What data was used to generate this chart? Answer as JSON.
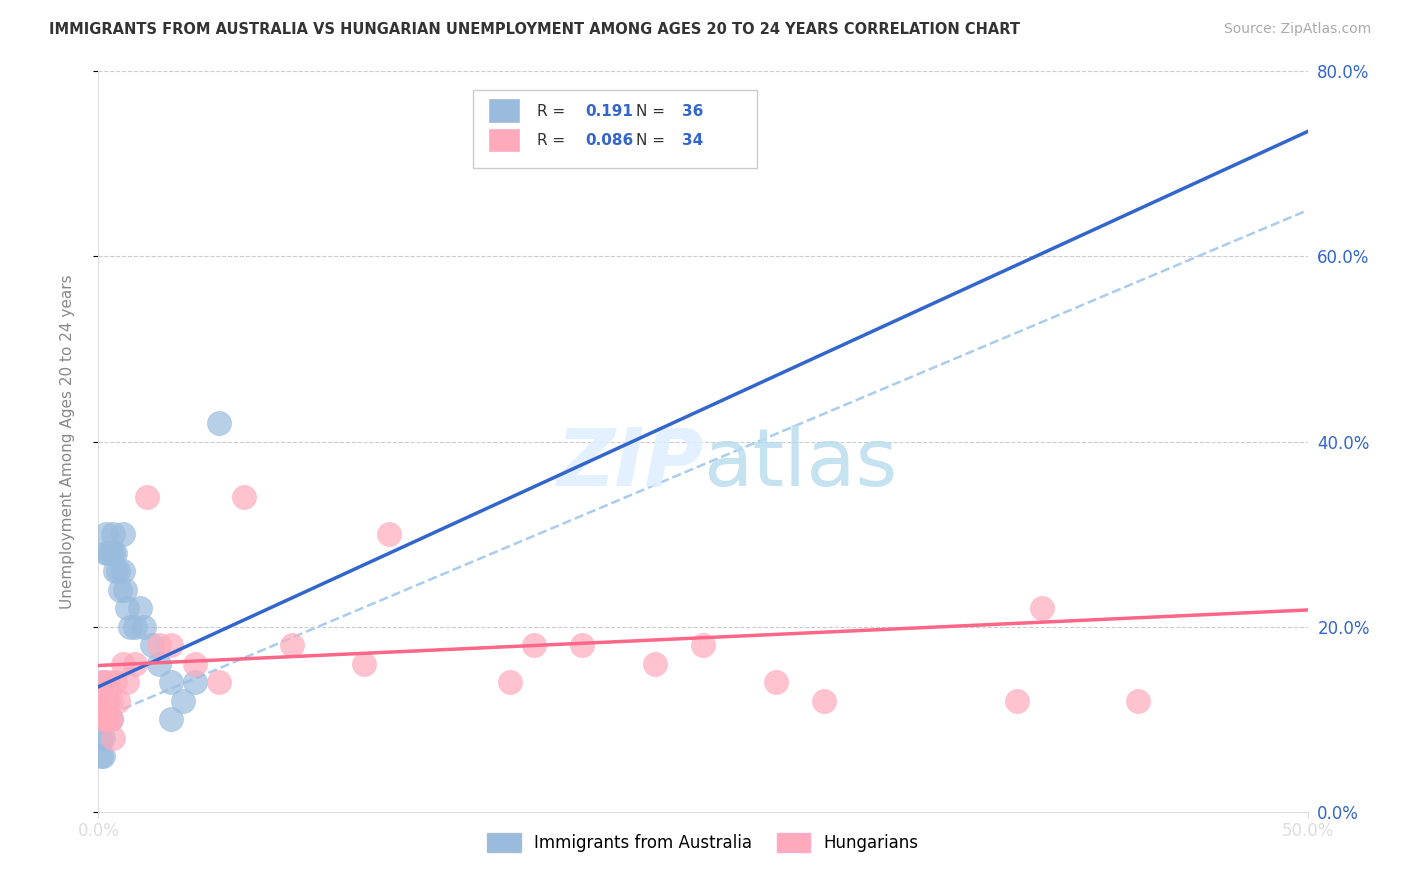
{
  "title": "IMMIGRANTS FROM AUSTRALIA VS HUNGARIAN UNEMPLOYMENT AMONG AGES 20 TO 24 YEARS CORRELATION CHART",
  "source": "Source: ZipAtlas.com",
  "ylabel": "Unemployment Among Ages 20 to 24 years",
  "xlim": [
    0,
    0.5
  ],
  "ylim": [
    0,
    0.8
  ],
  "legend1_R": "0.191",
  "legend1_N": "36",
  "legend2_R": "0.086",
  "legend2_N": "34",
  "legend1_label": "Immigrants from Australia",
  "legend2_label": "Hungarians",
  "blue_scatter_color": "#99BBDD",
  "pink_scatter_color": "#FFAABB",
  "blue_line_color": "#3366CC",
  "pink_line_color": "#FF6688",
  "dashed_line_color": "#AACCEE",
  "watermark_color": "#DDEEFF",
  "blue_x": [
    0.001,
    0.001,
    0.001,
    0.002,
    0.002,
    0.002,
    0.003,
    0.003,
    0.003,
    0.004,
    0.004,
    0.005,
    0.005,
    0.006,
    0.006,
    0.007,
    0.007,
    0.008,
    0.009,
    0.01,
    0.01,
    0.011,
    0.012,
    0.013,
    0.015,
    0.017,
    0.019,
    0.022,
    0.025,
    0.03,
    0.03,
    0.035,
    0.04,
    0.05,
    0.001,
    0.002
  ],
  "blue_y": [
    0.12,
    0.1,
    0.08,
    0.14,
    0.1,
    0.08,
    0.3,
    0.28,
    0.1,
    0.28,
    0.12,
    0.28,
    0.1,
    0.3,
    0.28,
    0.28,
    0.26,
    0.26,
    0.24,
    0.26,
    0.3,
    0.24,
    0.22,
    0.2,
    0.2,
    0.22,
    0.2,
    0.18,
    0.16,
    0.14,
    0.1,
    0.12,
    0.14,
    0.42,
    0.06,
    0.06
  ],
  "pink_x": [
    0.001,
    0.001,
    0.002,
    0.003,
    0.003,
    0.004,
    0.004,
    0.005,
    0.005,
    0.006,
    0.007,
    0.008,
    0.01,
    0.012,
    0.015,
    0.02,
    0.025,
    0.03,
    0.04,
    0.05,
    0.06,
    0.08,
    0.11,
    0.12,
    0.17,
    0.18,
    0.2,
    0.23,
    0.25,
    0.28,
    0.3,
    0.38,
    0.39,
    0.43
  ],
  "pink_y": [
    0.12,
    0.1,
    0.14,
    0.12,
    0.1,
    0.14,
    0.1,
    0.12,
    0.1,
    0.08,
    0.14,
    0.12,
    0.16,
    0.14,
    0.16,
    0.34,
    0.18,
    0.18,
    0.16,
    0.14,
    0.34,
    0.18,
    0.16,
    0.3,
    0.14,
    0.18,
    0.18,
    0.16,
    0.18,
    0.14,
    0.12,
    0.12,
    0.22,
    0.12
  ],
  "blue_line_x0": 0.0,
  "blue_line_y0": 0.135,
  "blue_line_x1": 0.1,
  "blue_line_y1": 0.255,
  "pink_line_x0": 0.0,
  "pink_line_y0": 0.158,
  "pink_line_x1": 0.5,
  "pink_line_y1": 0.218,
  "dash_line_x0": 0.0,
  "dash_line_y0": 0.1,
  "dash_line_x1": 0.5,
  "dash_line_y1": 0.65
}
